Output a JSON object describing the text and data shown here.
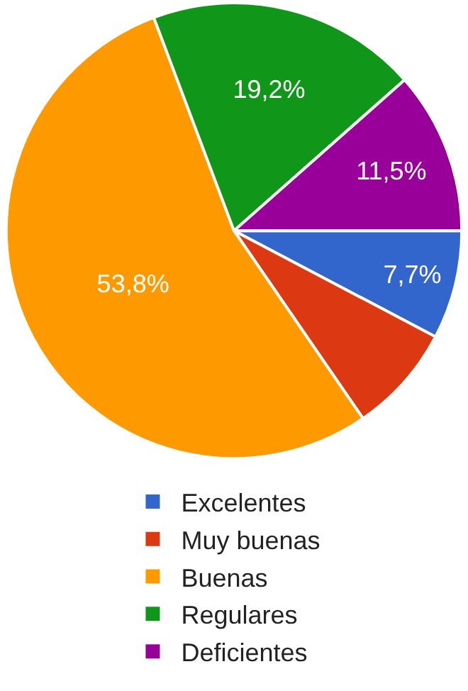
{
  "chart_data": {
    "type": "pie",
    "categories": [
      "Excelentes",
      "Muy buenas",
      "Buenas",
      "Regulares",
      "Deficientes"
    ],
    "values": [
      7.7,
      7.7,
      53.8,
      19.2,
      11.5
    ],
    "colors": [
      "#3366cc",
      "#dc3912",
      "#ff9900",
      "#109618",
      "#990099"
    ],
    "value_labels": [
      "7,7%",
      null,
      "53,8%",
      "19,2%",
      "11,5%"
    ],
    "legend": "bottom"
  }
}
